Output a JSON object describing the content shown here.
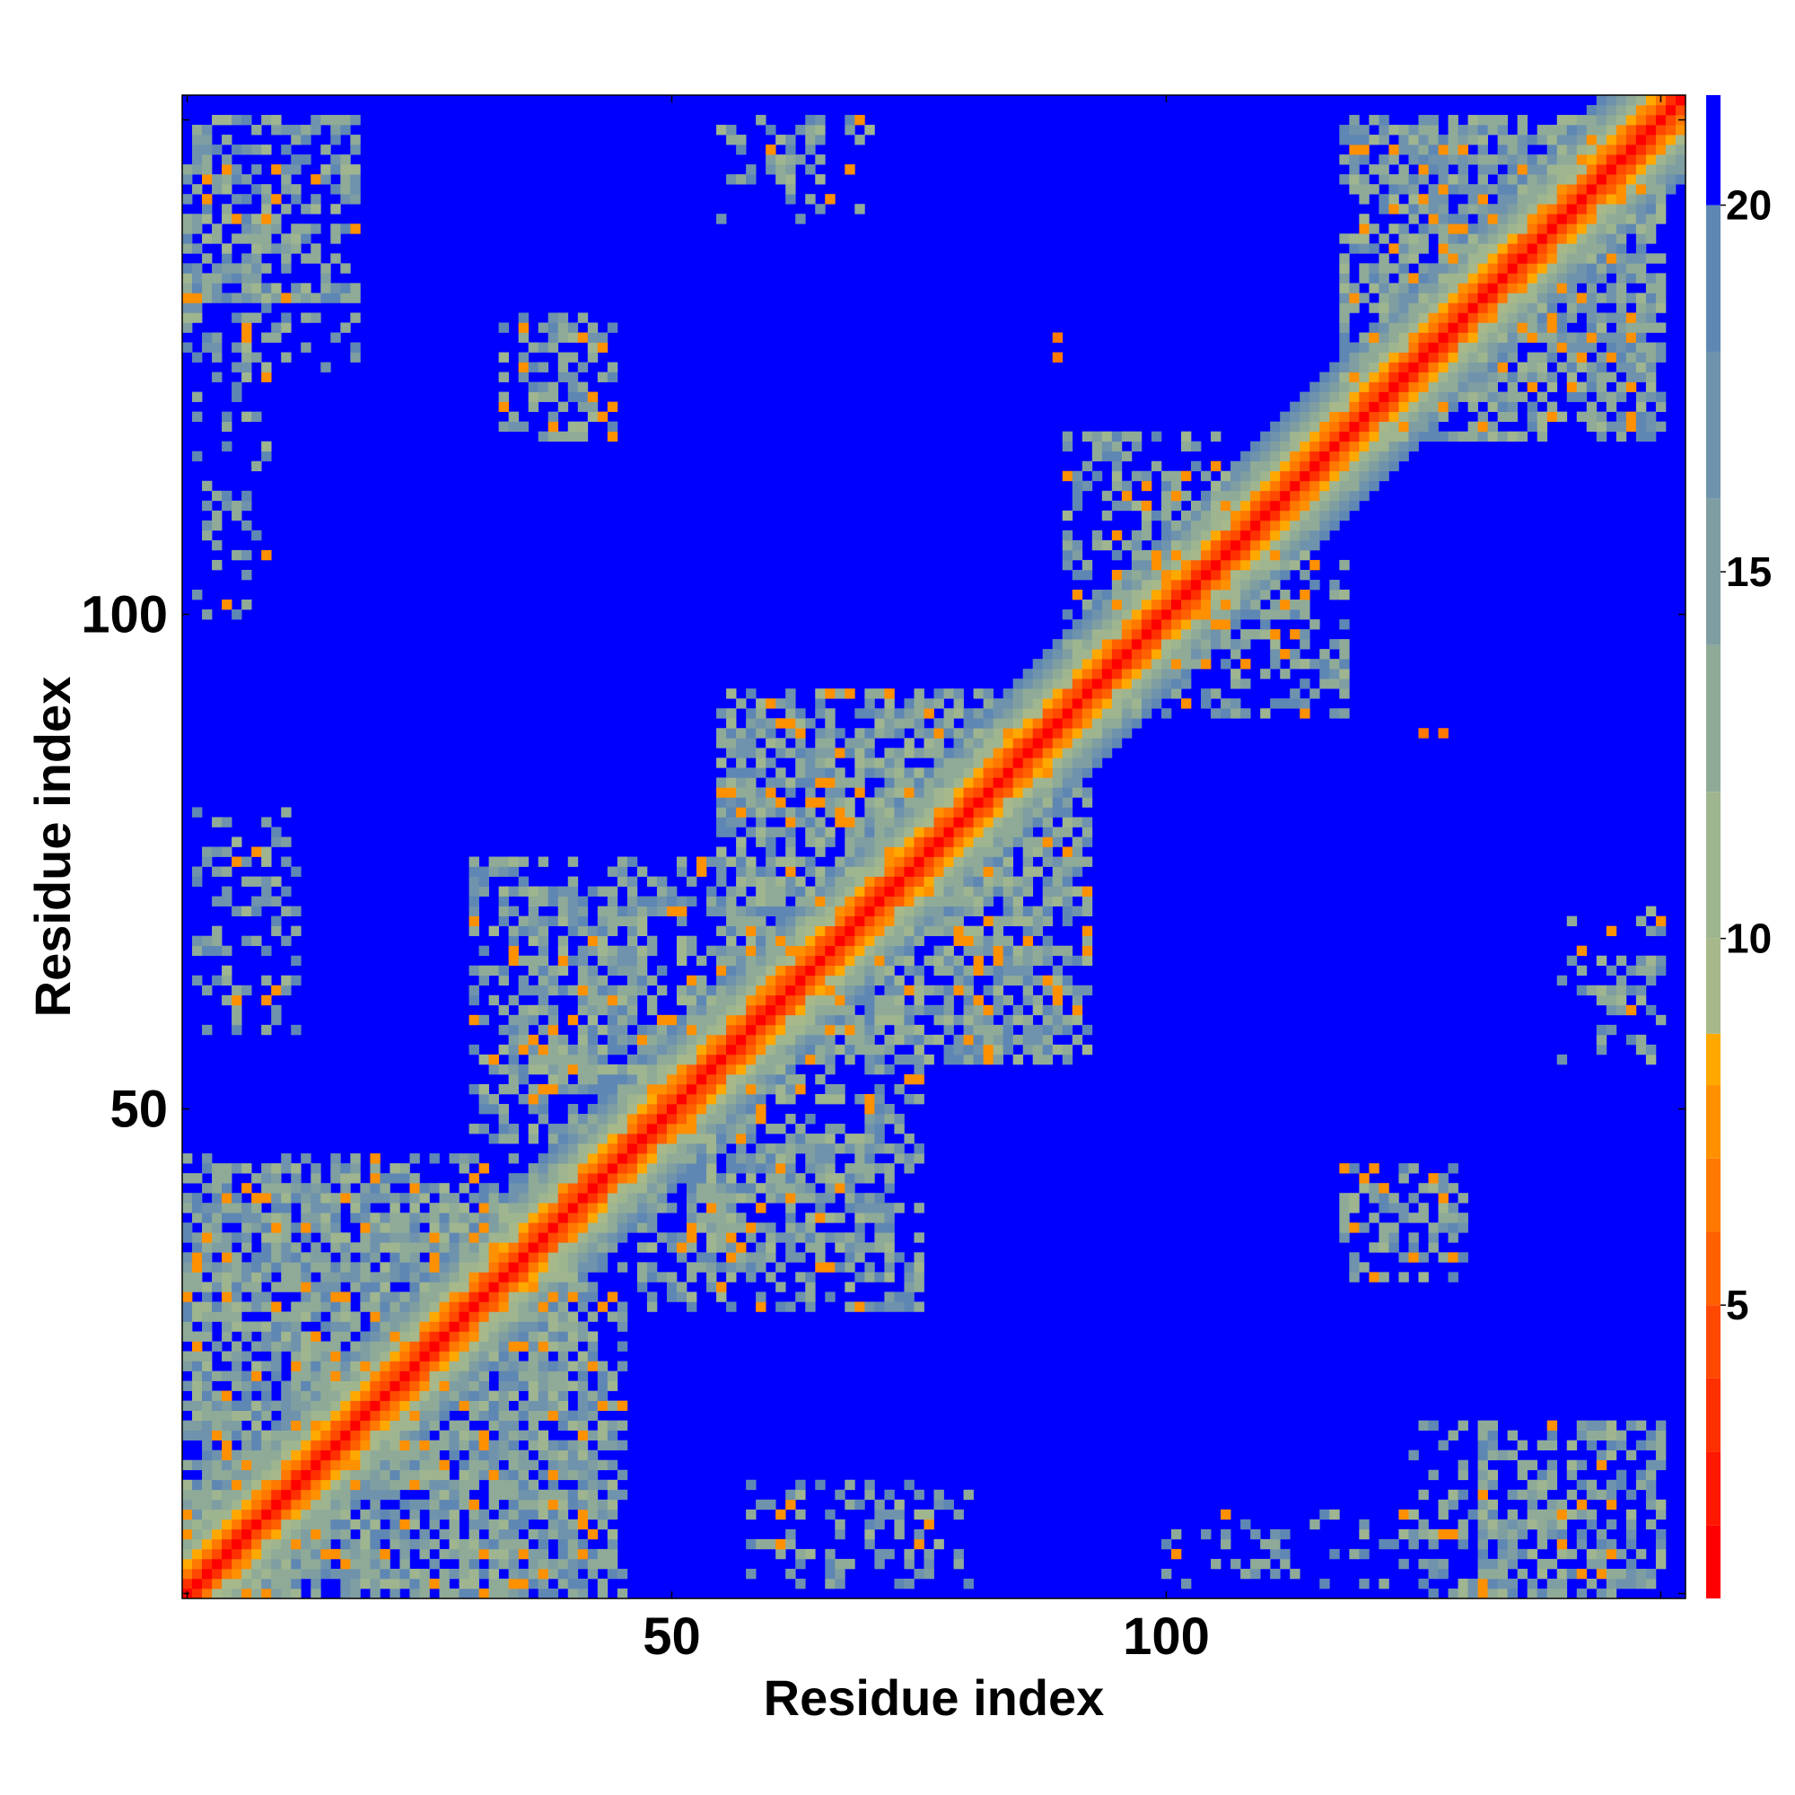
{
  "chart_data": {
    "type": "heatmap",
    "title": "",
    "xlabel": "Residue index",
    "ylabel": "Residue index",
    "n_residues": 152,
    "xlim": [
      1,
      152
    ],
    "ylim": [
      1,
      152
    ],
    "x_ticks": [
      50,
      100
    ],
    "y_ticks": [
      50,
      100
    ],
    "colorbar": {
      "ticks": [
        5,
        10,
        15,
        20
      ],
      "range": [
        1,
        21.5
      ],
      "levels": [
        {
          "max": 2,
          "color": "#ff0000"
        },
        {
          "max": 3,
          "color": "#ff1800"
        },
        {
          "max": 4,
          "color": "#ff3000"
        },
        {
          "max": 5,
          "color": "#ff4800"
        },
        {
          "max": 6,
          "color": "#ff6000"
        },
        {
          "max": 7,
          "color": "#ff7800"
        },
        {
          "max": 8,
          "color": "#ff9000"
        },
        {
          "max": 8.7,
          "color": "#ffa800"
        },
        {
          "max": 10,
          "color": "#a7b88a"
        },
        {
          "max": 12,
          "color": "#9fb590"
        },
        {
          "max": 14,
          "color": "#8fab98"
        },
        {
          "max": 16,
          "color": "#7f9ea2"
        },
        {
          "max": 18,
          "color": "#6f93ac"
        },
        {
          "max": 20,
          "color": "#5f87b4"
        },
        {
          "max": 21.5,
          "color": "#0000ff"
        }
      ]
    },
    "background_color": "#0000ff",
    "diagonal_band_width": 8,
    "contact_regions": [
      {
        "x": [
          1,
          18
        ],
        "y": [
          125,
          150
        ],
        "density": 0.3
      },
      {
        "x": [
          33,
          42
        ],
        "y": [
          118,
          130
        ],
        "density": 0.35
      },
      {
        "x": [
          54,
          70
        ],
        "y": [
          140,
          150
        ],
        "density": 0.2
      },
      {
        "x": [
          1,
          42
        ],
        "y": [
          1,
          45
        ],
        "density": 0.55
      },
      {
        "x": [
          2,
          12
        ],
        "y": [
          58,
          80
        ],
        "density": 0.3
      },
      {
        "x": [
          30,
          55
        ],
        "y": [
          47,
          75
        ],
        "density": 0.45
      },
      {
        "x": [
          52,
          72
        ],
        "y": [
          35,
          48
        ],
        "density": 0.45
      },
      {
        "x": [
          55,
          92
        ],
        "y": [
          55,
          90
        ],
        "density": 0.5
      },
      {
        "x": [
          95,
          118
        ],
        "y": [
          90,
          107
        ],
        "density": 0.45
      },
      {
        "x": [
          118,
          150
        ],
        "y": [
          122,
          150
        ],
        "density": 0.5
      },
      {
        "x": [
          118,
          130
        ],
        "y": [
          36,
          44
        ],
        "density": 0.4
      },
      {
        "x": [
          132,
          150
        ],
        "y": [
          1,
          18
        ],
        "density": 0.35
      },
      {
        "x": [
          100,
          150
        ],
        "y": [
          2,
          9
        ],
        "density": 0.2
      },
      {
        "x": [
          143,
          150
        ],
        "y": [
          57,
          65
        ],
        "density": 0.3
      }
    ],
    "isolated_contacts": [
      {
        "x": 89,
        "y": 126,
        "value": 7
      },
      {
        "x": 89,
        "y": 128,
        "value": 7
      },
      {
        "x": 128,
        "y": 88,
        "value": 7
      },
      {
        "x": 126,
        "y": 88,
        "value": 7
      }
    ]
  }
}
